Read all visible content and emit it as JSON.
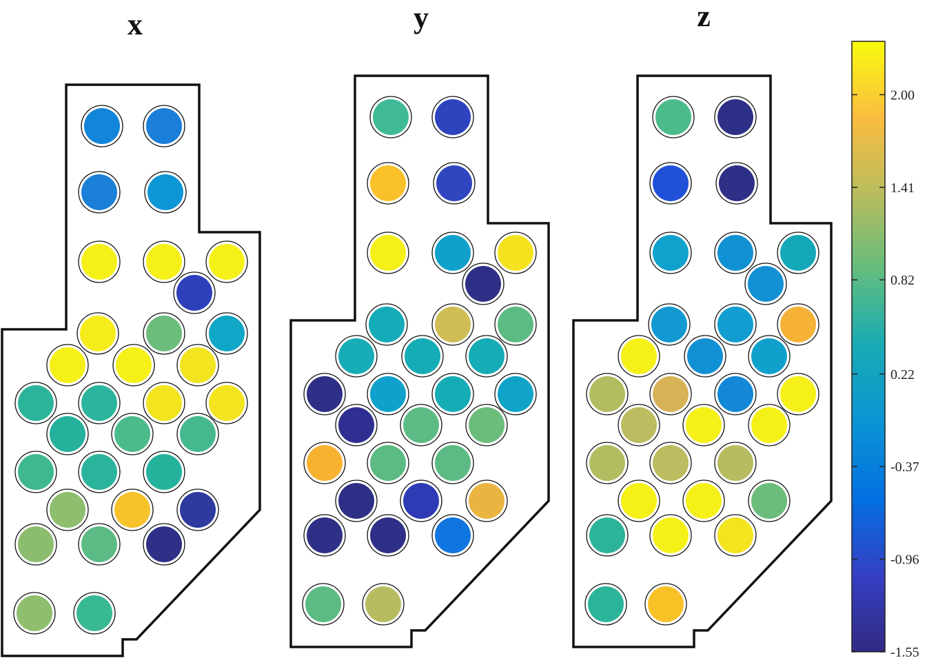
{
  "panels": [
    {
      "title": "x",
      "dots": [
        {
          "c": "#1286d8"
        },
        {
          "c": "#1a7fd8"
        },
        {
          "c": "#1a7fd6"
        },
        {
          "c": "#0f96d6"
        },
        {
          "c": "#f6f019"
        },
        {
          "c": "#f6f019"
        },
        {
          "c": "#f6f019"
        },
        {
          "c": "#2e3fbb"
        },
        {
          "c": "#f6ec1c"
        },
        {
          "c": "#6cbc7c"
        },
        {
          "c": "#10a6c8"
        },
        {
          "c": "#f6f019"
        },
        {
          "c": "#f6f019"
        },
        {
          "c": "#f2e41f"
        },
        {
          "c": "#2cb49a"
        },
        {
          "c": "#2bb59c"
        },
        {
          "c": "#f2e41f"
        },
        {
          "c": "#f2e41f"
        },
        {
          "c": "#25b19c"
        },
        {
          "c": "#4cbb8c"
        },
        {
          "c": "#46b88e"
        },
        {
          "c": "#3fb892"
        },
        {
          "c": "#2bb49c"
        },
        {
          "c": "#24b29c"
        },
        {
          "c": "#8fbe6e"
        },
        {
          "c": "#f8c22a"
        },
        {
          "c": "#2e3a9e"
        },
        {
          "c": "#8cbd6e"
        },
        {
          "c": "#5cbb84"
        },
        {
          "c": "#2e2f86"
        },
        {
          "c": "#8fbe6e"
        },
        {
          "c": "#38b893"
        }
      ]
    },
    {
      "title": "y",
      "dots": [
        {
          "c": "#40ba96"
        },
        {
          "c": "#2e44be"
        },
        {
          "c": "#fac029"
        },
        {
          "c": "#2f46c0"
        },
        {
          "c": "#f6f019"
        },
        {
          "c": "#0fa1cc"
        },
        {
          "c": "#f4e21e"
        },
        {
          "c": "#2e2f86"
        },
        {
          "c": "#16abb8"
        },
        {
          "c": "#cfbd55"
        },
        {
          "c": "#5cbb84"
        },
        {
          "c": "#17acb6"
        },
        {
          "c": "#16acb6"
        },
        {
          "c": "#16acb6"
        },
        {
          "c": "#2e2f86"
        },
        {
          "c": "#0fa1cc"
        },
        {
          "c": "#16acb6"
        },
        {
          "c": "#10a3c8"
        },
        {
          "c": "#2e2f90"
        },
        {
          "c": "#5cbb84"
        },
        {
          "c": "#6cbc7c"
        },
        {
          "c": "#f8b232"
        },
        {
          "c": "#5cbb84"
        },
        {
          "c": "#5cbb84"
        },
        {
          "c": "#2e2f86"
        },
        {
          "c": "#2e3bb4"
        },
        {
          "c": "#e9b440"
        },
        {
          "c": "#2e2f86"
        },
        {
          "c": "#2e2f86"
        },
        {
          "c": "#1175e0"
        },
        {
          "c": "#5cbb84"
        },
        {
          "c": "#b8bc60"
        }
      ]
    },
    {
      "title": "z",
      "dots": [
        {
          "c": "#4cbb8c"
        },
        {
          "c": "#2e2f86"
        },
        {
          "c": "#2050d8"
        },
        {
          "c": "#2e2f86"
        },
        {
          "c": "#10a1cc"
        },
        {
          "c": "#1290d4"
        },
        {
          "c": "#13a8b8"
        },
        {
          "c": "#1290d4"
        },
        {
          "c": "#1399d2"
        },
        {
          "c": "#119dd0"
        },
        {
          "c": "#f6b237"
        },
        {
          "c": "#f6f019"
        },
        {
          "c": "#1290d4"
        },
        {
          "c": "#11a0cc"
        },
        {
          "c": "#b4bc62"
        },
        {
          "c": "#d8b256"
        },
        {
          "c": "#1288d6"
        },
        {
          "c": "#f6f019"
        },
        {
          "c": "#bcbc60"
        },
        {
          "c": "#f6f019"
        },
        {
          "c": "#f6f019"
        },
        {
          "c": "#b4bc62"
        },
        {
          "c": "#bcbc60"
        },
        {
          "c": "#b8bc60"
        },
        {
          "c": "#f6f019"
        },
        {
          "c": "#f6f019"
        },
        {
          "c": "#6cbc7c"
        },
        {
          "c": "#2cb49a"
        },
        {
          "c": "#f6f019"
        },
        {
          "c": "#f2e41f"
        },
        {
          "c": "#2cb49a"
        },
        {
          "c": "#f8c227"
        }
      ]
    }
  ],
  "colorbar": {
    "ticks": [
      "2.00",
      "1.41",
      "0.82",
      "0.22",
      "-0.37",
      "-0.96",
      "-1.55"
    ],
    "colors": [
      "#f9fb0e",
      "#fbbc3f",
      "#b8bd5e",
      "#62bd7e",
      "#17abb4",
      "#0c94d4",
      "#0370e1",
      "#353fc3",
      "#322a83"
    ]
  }
}
